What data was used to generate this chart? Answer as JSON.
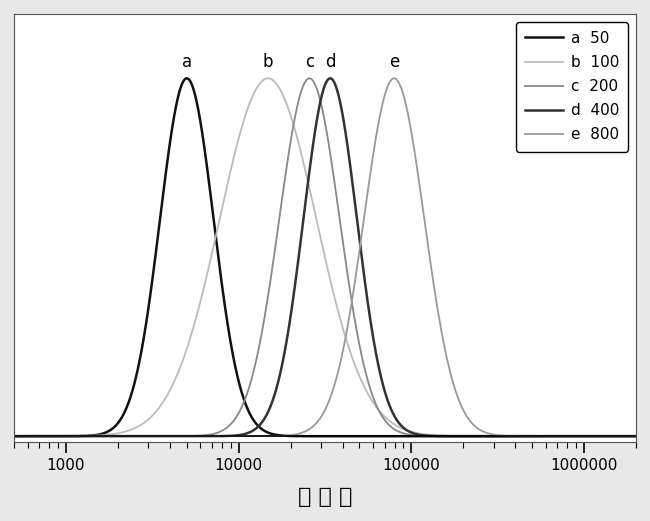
{
  "series": [
    {
      "label": "a  50",
      "color": "#111111",
      "lw": 1.8,
      "mu_log10": 3.7,
      "sigma_log10": 0.155,
      "peak_label": "a"
    },
    {
      "label": "b  100",
      "color": "#bbbbbb",
      "lw": 1.3,
      "mu_log10": 4.17,
      "sigma_log10": 0.28,
      "peak_label": "b"
    },
    {
      "label": "c  200",
      "color": "#888888",
      "lw": 1.3,
      "mu_log10": 4.41,
      "sigma_log10": 0.175,
      "peak_label": "c"
    },
    {
      "label": "d  400",
      "color": "#333333",
      "lw": 1.8,
      "mu_log10": 4.53,
      "sigma_log10": 0.155,
      "peak_label": "d"
    },
    {
      "label": "e  800",
      "color": "#999999",
      "lw": 1.3,
      "mu_log10": 4.9,
      "sigma_log10": 0.175,
      "peak_label": "e"
    }
  ],
  "xmin": 500,
  "xmax": 2000000,
  "major_ticks": [
    1000,
    10000,
    100000,
    1000000
  ],
  "major_tick_labels": [
    "1000",
    "10000",
    "100000",
    "1000000"
  ],
  "xlabel": "分 子 量",
  "xlabel_fontsize": 16,
  "tick_label_fontsize": 11,
  "legend_fontsize": 11,
  "peak_label_fontsize": 12,
  "plot_bg_color": "#ffffff",
  "fig_bg_color": "#e8e8e8",
  "border_color": "#555555",
  "legend_labels": [
    "a  50",
    "b  100",
    "c  200",
    "d  400",
    "e  800"
  ]
}
